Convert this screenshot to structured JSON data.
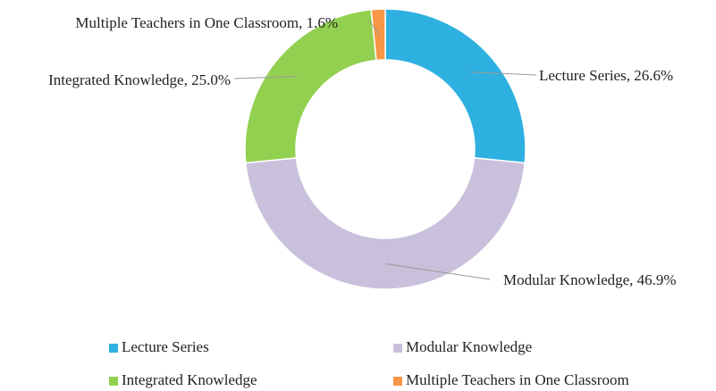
{
  "chart_data": {
    "type": "donut",
    "categories": [
      "Lecture Series",
      "Modular Knowledge",
      "Integrated Knowledge",
      "Multiple Teachers in One Classroom"
    ],
    "values": [
      26.6,
      46.9,
      25.0,
      1.6
    ],
    "value_labels": [
      "Lecture Series, 26.6%",
      "Modular Knowledge, 46.9%",
      "Integrated Knowledge, 25.0%",
      "Multiple Teachers in One Classroom, 1.6%"
    ],
    "colors": [
      "#2eb0e0",
      "#c9c1dc",
      "#92d050",
      "#f79646"
    ],
    "legend": "bottom"
  }
}
